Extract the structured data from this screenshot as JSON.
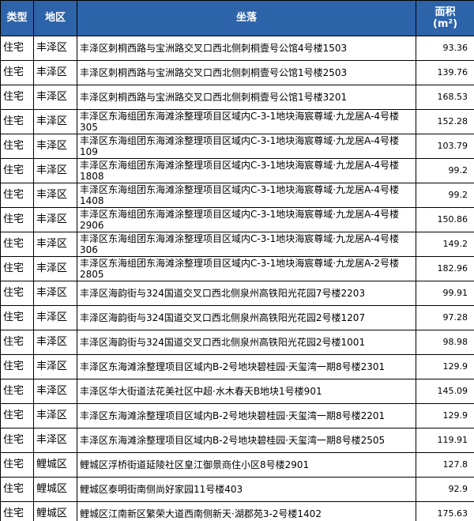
{
  "table": {
    "header": [
      "类型",
      "地区",
      "坐落",
      "面积",
      "(m²)"
    ],
    "rows": [
      [
        "住宅",
        "丰泽区",
        "丰泽区刺桐西路与宝洲路交叉口西北侧刺桐壹号公馆4号楼1503",
        "93.36"
      ],
      [
        "住宅",
        "丰泽区",
        "丰泽区刺桐西路与宝洲路交叉口西北侧刺桐壹号公馆1号楼2503",
        "139.76"
      ],
      [
        "住宅",
        "丰泽区",
        "丰泽区刺桐西路与宝洲路交叉口西北侧刺桐壹号公馆1号楼3201",
        "168.53"
      ],
      [
        "住宅",
        "丰泽区",
        "丰泽区东海组团东海滩涂整理项目区域内C-3-1地块海宸尊域·九龙居A-4号楼305",
        "152.28"
      ],
      [
        "住宅",
        "丰泽区",
        "丰泽区东海组团东海滩涂整理项目区域内C-3-1地块海宸尊域·九龙居A-4号楼109",
        "103.79"
      ],
      [
        "住宅",
        "丰泽区",
        "丰泽区东海组团东海滩涂整理项目区域内C-3-1地块海宸尊域·九龙居A-4号楼1808",
        "99.2"
      ],
      [
        "住宅",
        "丰泽区",
        "丰泽区东海组团东海滩涂整理项目区域内C-3-1地块海宸尊域·九龙居A-4号楼1408",
        "99.2"
      ],
      [
        "住宅",
        "丰泽区",
        "丰泽区东海组团东海滩涂整理项目区域内C-3-1地块海宸尊域·九龙居A-4号楼2906",
        "150.86"
      ],
      [
        "住宅",
        "丰泽区",
        "丰泽区东海组团东海滩涂整理项目区域内C-3-1地块海宸尊域·九龙居A-4号楼306",
        "149.2"
      ],
      [
        "住宅",
        "丰泽区",
        "丰泽区东海组团东海滩涂整理项目区域内C-3-1地块海宸尊域·九龙居A-2号楼2805",
        "182.96"
      ],
      [
        "住宅",
        "丰泽区",
        "丰泽区海韵街与324国道交叉口西北侧泉州高铁阳光花园7号楼2203",
        "99.91"
      ],
      [
        "住宅",
        "丰泽区",
        "丰泽区海韵街与324国道交叉口西北侧泉州高铁阳光花园2号楼1207",
        "97.28"
      ],
      [
        "住宅",
        "丰泽区",
        "丰泽区海韵街与324国道交叉口西北侧泉州高铁阳光花园2号楼1001",
        "98.98"
      ],
      [
        "住宅",
        "丰泽区",
        "丰泽区东海滩涂整理项目区域内B-2号地块碧桂园·天玺湾一期8号楼2301",
        "129.9"
      ],
      [
        "住宅",
        "丰泽区",
        "丰泽区华大街道法花美社区中超·水木春天B地块1号楼901",
        "145.09"
      ],
      [
        "住宅",
        "丰泽区",
        "丰泽区东海滩涂整理项目区域内B-2号地块碧桂园·天玺湾一期8号楼2201",
        "129.9"
      ],
      [
        "住宅",
        "丰泽区",
        "丰泽区东海滩涂整理项目区域内B-2号地块碧桂园·天玺湾一期8号楼2505",
        "119.91"
      ],
      [
        "住宅",
        "鲤城区",
        "鲤城区浮桥街道延陵社区皇江御景商住小区8号楼2901",
        "127.8"
      ],
      [
        "住宅",
        "鲤城区",
        "鲤城区泰明街南侧尚好家园11号楼403",
        "92.9"
      ],
      [
        "住宅",
        "鲤城区",
        "鲤城区江南新区繁荣大道西南侧新天·湖郡苑3-2号楼1402",
        "175.63"
      ]
    ]
  }
}
